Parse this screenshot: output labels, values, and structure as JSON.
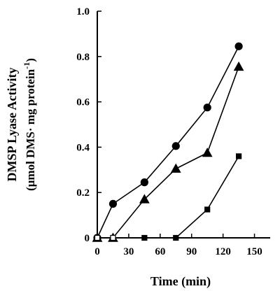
{
  "chart_data": {
    "type": "line",
    "xlabel": "Time (min)",
    "ylabel_line1": "DMSP Lyase Activity",
    "ylabel_line2_main": "(μmol DMS· mg protein",
    "ylabel_line2_sup": "-1",
    "ylabel_line2_close": ")",
    "xlim": [
      0,
      165
    ],
    "ylim": [
      0,
      1.0
    ],
    "xticks": [
      0,
      30,
      60,
      90,
      120,
      150
    ],
    "yticks": [
      0,
      0.2,
      0.4,
      0.6,
      0.8,
      1.0
    ],
    "ytick_labels": [
      "0",
      "0.2",
      "0.4",
      "0.6",
      "0.8",
      "1.0"
    ],
    "xtick_labels": [
      "0",
      "30",
      "60",
      "90",
      "120",
      "150"
    ],
    "grid": false,
    "series": [
      {
        "marker": "circle",
        "x": [
          0,
          15,
          45,
          75,
          105,
          135
        ],
        "y": [
          0,
          0.15,
          0.245,
          0.405,
          0.575,
          0.845
        ]
      },
      {
        "marker": "triangle",
        "x": [
          0,
          15,
          45,
          75,
          105,
          135
        ],
        "y": [
          0,
          0,
          0.17,
          0.305,
          0.375,
          0.755
        ]
      },
      {
        "marker": "square",
        "x": [
          0,
          15,
          45,
          75,
          105,
          135
        ],
        "y": [
          0,
          0,
          0,
          0,
          0.125,
          0.36
        ]
      }
    ],
    "colors": {
      "line": "#000000",
      "marker_fill": "#000000",
      "hollow_fill": "#ffffff"
    }
  }
}
